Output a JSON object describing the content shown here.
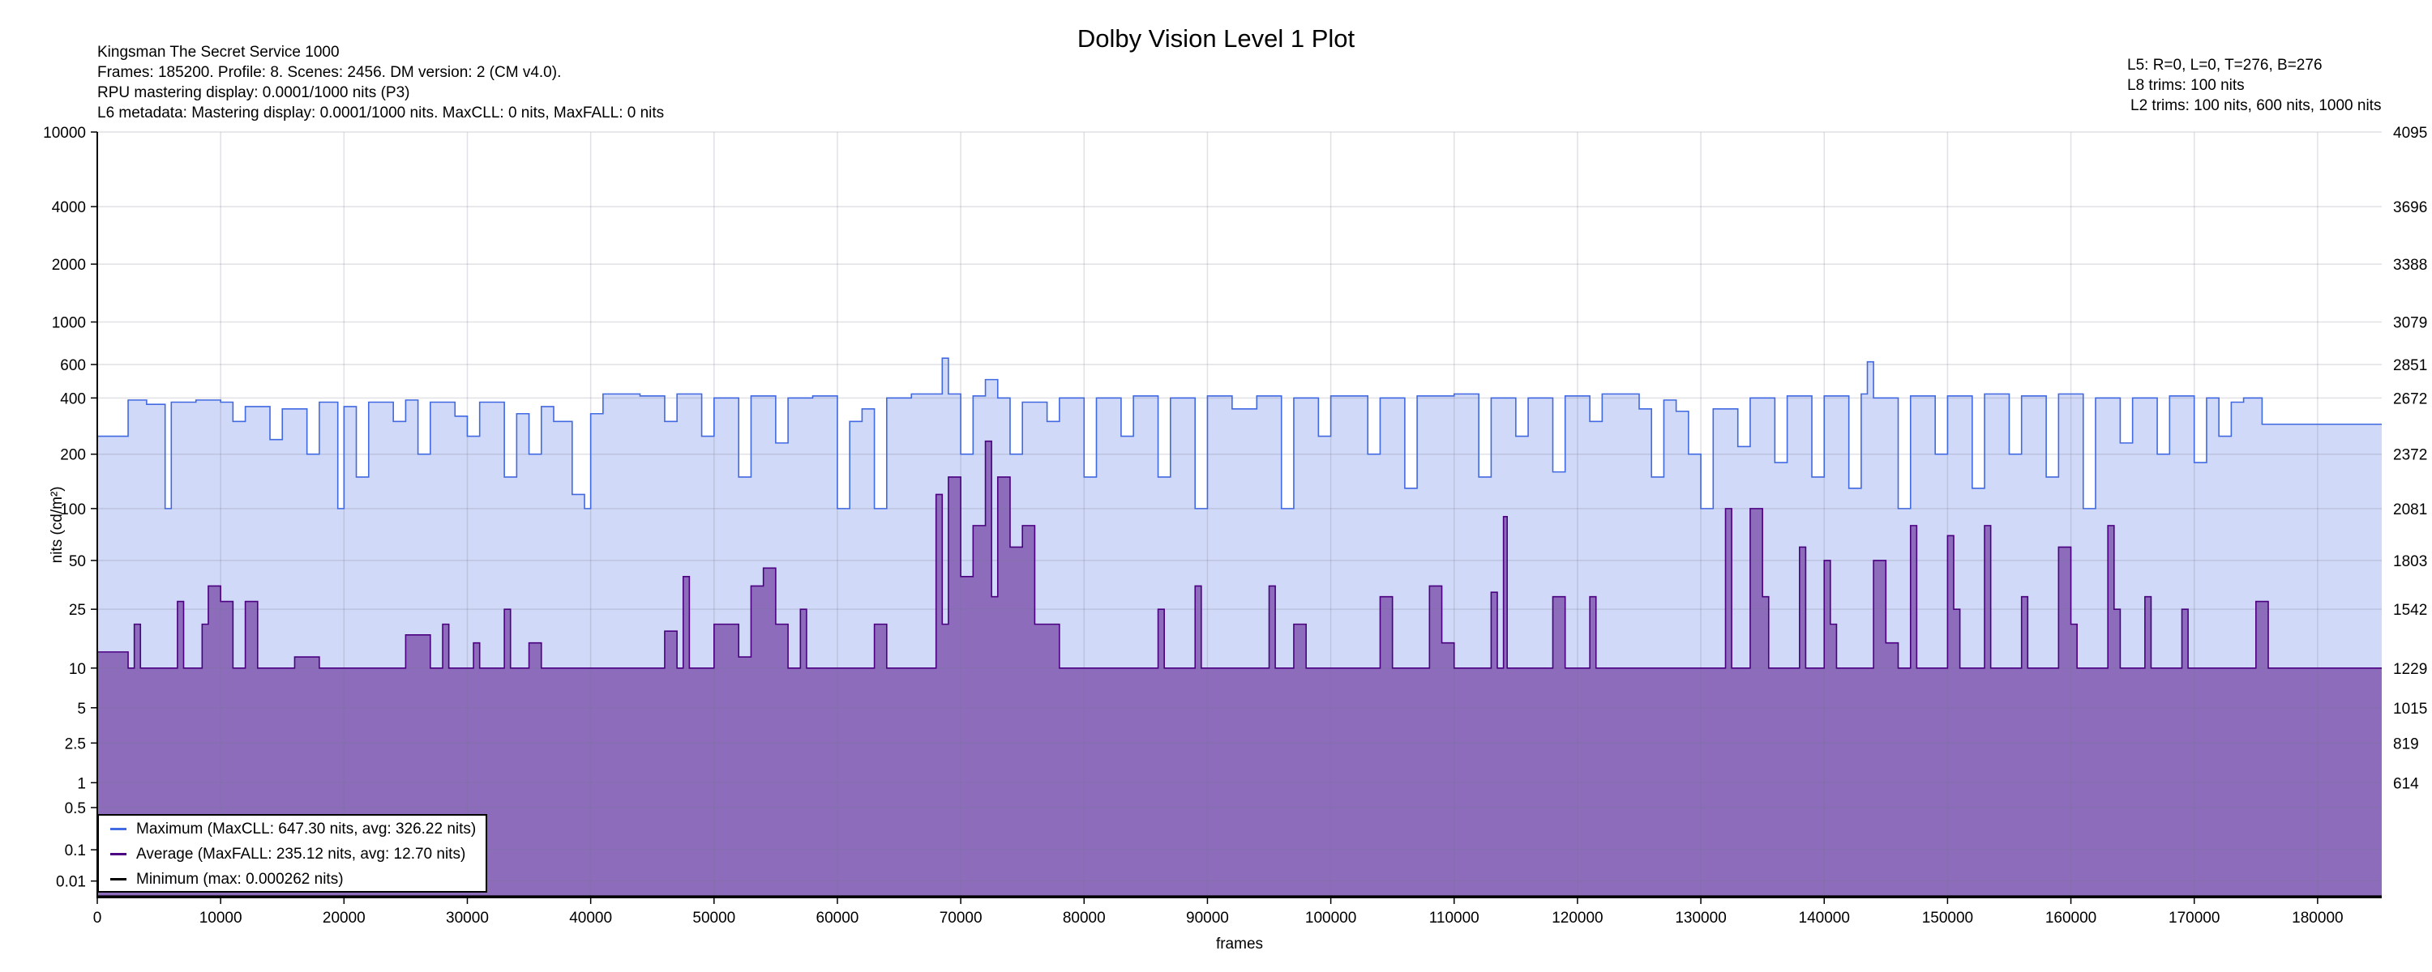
{
  "header": {
    "title": "Dolby Vision Level 1 Plot",
    "info_left": [
      "Kingsman The Secret Service 1000",
      "Frames: 185200. Profile: 8. Scenes: 2456. DM version: 2 (CM v4.0).",
      "RPU mastering display: 0.0001/1000 nits  (P3)",
      "L6 metadata: Mastering display: 0.0001/1000 nits. MaxCLL: 0 nits, MaxFALL: 0 nits"
    ],
    "info_right": [
      "L5: R=0, L=0, T=276, B=276",
      "L8 trims: 100 nits",
      "L2 trims: 100 nits, 600 nits, 1000 nits"
    ]
  },
  "colors": {
    "max_line": "#4169e1",
    "max_fill": "#d0d9f7",
    "avg_line": "#4b0082",
    "avg_fill": "#8c6cbb",
    "min_line": "#000000",
    "grid": "#dcdcdc"
  },
  "chart_data": {
    "type": "area",
    "title": "Dolby Vision Level 1 Plot",
    "xlabel": "frames",
    "ylabel": "nits (cd/m²)",
    "xlim": [
      0,
      185200
    ],
    "ylim": [
      0,
      10000
    ],
    "yscale": "PQ",
    "grid": true,
    "legend_position": "bottom-left",
    "x_ticks": [
      "0",
      "10000",
      "20000",
      "30000",
      "40000",
      "50000",
      "60000",
      "70000",
      "80000",
      "90000",
      "100000",
      "110000",
      "120000",
      "130000",
      "140000",
      "150000",
      "160000",
      "170000",
      "180000"
    ],
    "y_ticks": [
      "10000",
      "4000",
      "2000",
      "1000",
      "600",
      "400",
      "200",
      "100",
      "50",
      "25",
      "10",
      "5",
      "2.5",
      "1",
      "0.5",
      "0.1",
      "0.01"
    ],
    "y_ticks_right": [
      "4095",
      "3696",
      "3388",
      "3079",
      "2851",
      "2672",
      "2372",
      "2081",
      "1803",
      "1542",
      "1229",
      "1015",
      "819",
      "614"
    ],
    "series": [
      {
        "name": "Maximum (MaxCLL: 647.30 nits, avg: 326.22 nits)",
        "points": [
          [
            0,
            250
          ],
          [
            2500,
            390
          ],
          [
            4000,
            370
          ],
          [
            5500,
            100
          ],
          [
            6000,
            380
          ],
          [
            8000,
            390
          ],
          [
            10000,
            380
          ],
          [
            11000,
            300
          ],
          [
            12000,
            360
          ],
          [
            14000,
            240
          ],
          [
            15000,
            350
          ],
          [
            17000,
            200
          ],
          [
            18000,
            380
          ],
          [
            19500,
            100
          ],
          [
            20000,
            360
          ],
          [
            21000,
            150
          ],
          [
            22000,
            380
          ],
          [
            24000,
            300
          ],
          [
            25000,
            390
          ],
          [
            26000,
            200
          ],
          [
            27000,
            380
          ],
          [
            29000,
            320
          ],
          [
            30000,
            250
          ],
          [
            31000,
            380
          ],
          [
            33000,
            150
          ],
          [
            34000,
            330
          ],
          [
            35000,
            200
          ],
          [
            36000,
            360
          ],
          [
            37000,
            300
          ],
          [
            38500,
            120
          ],
          [
            39500,
            100
          ],
          [
            40000,
            330
          ],
          [
            41000,
            420
          ],
          [
            44000,
            410
          ],
          [
            46000,
            300
          ],
          [
            47000,
            420
          ],
          [
            49000,
            250
          ],
          [
            50000,
            400
          ],
          [
            52000,
            150
          ],
          [
            53000,
            410
          ],
          [
            55000,
            230
          ],
          [
            56000,
            400
          ],
          [
            58000,
            410
          ],
          [
            60000,
            100
          ],
          [
            61000,
            300
          ],
          [
            62000,
            350
          ],
          [
            63000,
            100
          ],
          [
            64000,
            400
          ],
          [
            66000,
            420
          ],
          [
            68500,
            647.3
          ],
          [
            69000,
            420
          ],
          [
            70000,
            200
          ],
          [
            71000,
            410
          ],
          [
            72000,
            500
          ],
          [
            73000,
            400
          ],
          [
            74000,
            200
          ],
          [
            75000,
            380
          ],
          [
            77000,
            300
          ],
          [
            78000,
            400
          ],
          [
            80000,
            150
          ],
          [
            81000,
            400
          ],
          [
            83000,
            250
          ],
          [
            84000,
            410
          ],
          [
            86000,
            150
          ],
          [
            87000,
            400
          ],
          [
            89000,
            100
          ],
          [
            90000,
            410
          ],
          [
            92000,
            350
          ],
          [
            94000,
            410
          ],
          [
            96000,
            100
          ],
          [
            97000,
            400
          ],
          [
            99000,
            250
          ],
          [
            100000,
            410
          ],
          [
            103000,
            200
          ],
          [
            104000,
            400
          ],
          [
            106000,
            130
          ],
          [
            107000,
            410
          ],
          [
            110000,
            420
          ],
          [
            112000,
            150
          ],
          [
            113000,
            400
          ],
          [
            115000,
            250
          ],
          [
            116000,
            400
          ],
          [
            118000,
            160
          ],
          [
            119000,
            410
          ],
          [
            121000,
            300
          ],
          [
            122000,
            420
          ],
          [
            125000,
            350
          ],
          [
            126000,
            150
          ],
          [
            127000,
            390
          ],
          [
            128000,
            340
          ],
          [
            129000,
            200
          ],
          [
            130000,
            100
          ],
          [
            131000,
            350
          ],
          [
            133000,
            220
          ],
          [
            134000,
            400
          ],
          [
            136000,
            180
          ],
          [
            137000,
            410
          ],
          [
            139000,
            150
          ],
          [
            140000,
            410
          ],
          [
            142000,
            130
          ],
          [
            143000,
            420
          ],
          [
            143500,
            620
          ],
          [
            144000,
            400
          ],
          [
            146000,
            100
          ],
          [
            147000,
            410
          ],
          [
            149000,
            200
          ],
          [
            150000,
            410
          ],
          [
            152000,
            130
          ],
          [
            153000,
            420
          ],
          [
            155000,
            200
          ],
          [
            156000,
            410
          ],
          [
            158000,
            150
          ],
          [
            159000,
            420
          ],
          [
            161000,
            100
          ],
          [
            162000,
            400
          ],
          [
            164000,
            230
          ],
          [
            165000,
            400
          ],
          [
            167000,
            200
          ],
          [
            168000,
            410
          ],
          [
            170000,
            180
          ],
          [
            171000,
            400
          ],
          [
            172000,
            250
          ],
          [
            173000,
            380
          ],
          [
            174000,
            400
          ],
          [
            175500,
            290
          ],
          [
            185200,
            290
          ]
        ]
      },
      {
        "name": "Average (MaxFALL: 235.12 nits, avg: 12.70 nits)",
        "points": [
          [
            0,
            13
          ],
          [
            2500,
            10
          ],
          [
            3000,
            20
          ],
          [
            3500,
            10
          ],
          [
            6500,
            28
          ],
          [
            7000,
            10
          ],
          [
            8500,
            20
          ],
          [
            9000,
            35
          ],
          [
            10000,
            28
          ],
          [
            11000,
            10
          ],
          [
            12000,
            28
          ],
          [
            13000,
            10
          ],
          [
            16000,
            12
          ],
          [
            18000,
            10
          ],
          [
            25000,
            17
          ],
          [
            27000,
            10
          ],
          [
            28000,
            20
          ],
          [
            28500,
            10
          ],
          [
            30500,
            15
          ],
          [
            31000,
            10
          ],
          [
            33000,
            25
          ],
          [
            33500,
            10
          ],
          [
            35000,
            15
          ],
          [
            36000,
            10
          ],
          [
            46000,
            18
          ],
          [
            47000,
            10
          ],
          [
            47500,
            40
          ],
          [
            48000,
            10
          ],
          [
            50000,
            20
          ],
          [
            52000,
            12
          ],
          [
            53000,
            35
          ],
          [
            54000,
            45
          ],
          [
            55000,
            20
          ],
          [
            56000,
            10
          ],
          [
            57000,
            25
          ],
          [
            57500,
            10
          ],
          [
            63000,
            20
          ],
          [
            64000,
            10
          ],
          [
            68000,
            120
          ],
          [
            68500,
            20
          ],
          [
            69000,
            150
          ],
          [
            70000,
            40
          ],
          [
            71000,
            80
          ],
          [
            72000,
            235.12
          ],
          [
            72500,
            30
          ],
          [
            73000,
            150
          ],
          [
            74000,
            60
          ],
          [
            75000,
            80
          ],
          [
            76000,
            20
          ],
          [
            78000,
            10
          ],
          [
            86000,
            25
          ],
          [
            86500,
            10
          ],
          [
            89000,
            35
          ],
          [
            89500,
            10
          ],
          [
            95000,
            35
          ],
          [
            95500,
            10
          ],
          [
            97000,
            20
          ],
          [
            98000,
            10
          ],
          [
            104000,
            30
          ],
          [
            105000,
            10
          ],
          [
            108000,
            35
          ],
          [
            109000,
            15
          ],
          [
            110000,
            10
          ],
          [
            113000,
            32
          ],
          [
            113500,
            10
          ],
          [
            114000,
            90
          ],
          [
            114300,
            10
          ],
          [
            118000,
            30
          ],
          [
            119000,
            10
          ],
          [
            121000,
            30
          ],
          [
            121500,
            10
          ],
          [
            132000,
            100
          ],
          [
            132500,
            10
          ],
          [
            134000,
            100
          ],
          [
            135000,
            30
          ],
          [
            135500,
            10
          ],
          [
            138000,
            60
          ],
          [
            138500,
            10
          ],
          [
            140000,
            50
          ],
          [
            140500,
            20
          ],
          [
            141000,
            10
          ],
          [
            144000,
            50
          ],
          [
            145000,
            15
          ],
          [
            146000,
            10
          ],
          [
            147000,
            80
          ],
          [
            147500,
            10
          ],
          [
            150000,
            70
          ],
          [
            150500,
            25
          ],
          [
            151000,
            10
          ],
          [
            153000,
            80
          ],
          [
            153500,
            10
          ],
          [
            156000,
            30
          ],
          [
            156500,
            10
          ],
          [
            159000,
            60
          ],
          [
            160000,
            20
          ],
          [
            160500,
            10
          ],
          [
            163000,
            80
          ],
          [
            163500,
            25
          ],
          [
            164000,
            10
          ],
          [
            166000,
            30
          ],
          [
            166500,
            10
          ],
          [
            169000,
            25
          ],
          [
            169500,
            10
          ],
          [
            175000,
            28
          ],
          [
            176000,
            10
          ],
          [
            185200,
            10
          ]
        ]
      },
      {
        "name": "Minimum (max: 0.000262 nits)",
        "points": [
          [
            0,
            0.0001
          ],
          [
            185200,
            0.0001
          ]
        ]
      }
    ]
  }
}
